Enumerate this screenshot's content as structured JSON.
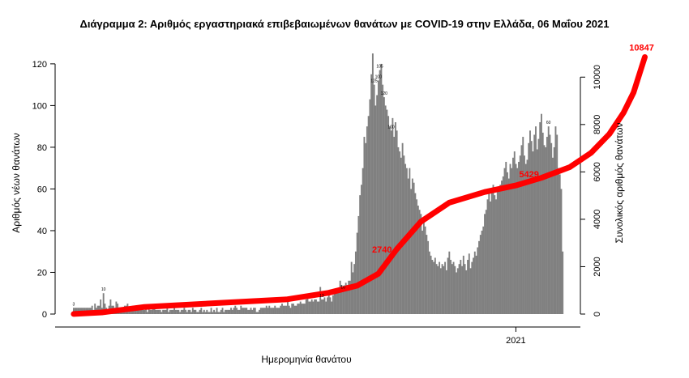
{
  "chart_data": {
    "type": "bar",
    "title": "Διάγραμμα 2: Αριθμός εργαστηριακά επιβεβαιωμένων θανάτων με COVID-19 στην Ελλάδα, 06 Μαΐου 2021",
    "xlabel": "Ημερομηνία θανάτου",
    "ylabel": "Αριθμός νέων θανάτων",
    "y2label": "Συνολικός αριθμός θανάτων",
    "ylim": [
      0,
      125
    ],
    "y2lim": [
      0,
      11000
    ],
    "yticks": [
      0,
      20,
      40,
      60,
      80,
      100,
      120
    ],
    "y2ticks": [
      0,
      2000,
      4000,
      6000,
      8000,
      10000
    ],
    "xtick_labels": [
      {
        "day": 312,
        "label": "2021"
      }
    ],
    "grid": false,
    "colors": {
      "bars": "#808080",
      "cumulative_line": "#ff0000",
      "annotation": "#ff0000"
    },
    "series": [
      {
        "kind": "bar",
        "values": [
          3,
          3,
          3,
          3,
          3,
          3,
          3,
          3,
          3,
          3,
          3,
          3,
          3,
          4,
          2,
          5,
          3,
          4,
          4,
          7,
          3,
          10,
          5,
          3,
          2,
          4,
          7,
          4,
          4,
          3,
          6,
          5,
          3,
          3,
          2,
          2,
          4,
          4,
          5,
          3,
          2,
          3,
          4,
          2,
          3,
          3,
          3,
          3,
          2,
          2,
          2,
          3,
          1,
          3,
          2,
          2,
          3,
          3,
          2,
          2,
          2,
          2,
          1,
          2,
          2,
          2,
          3,
          1,
          2,
          2,
          2,
          3,
          2,
          2,
          2,
          1,
          2,
          2,
          3,
          2,
          1,
          2,
          2,
          1,
          3,
          2,
          2,
          1,
          1,
          2,
          3,
          1,
          2,
          1,
          2,
          1,
          1,
          3,
          1,
          2,
          1,
          3,
          1,
          1,
          2,
          3,
          1,
          2,
          2,
          2,
          2,
          3,
          2,
          3,
          4,
          3,
          2,
          2,
          4,
          3,
          3,
          3,
          3,
          2,
          2,
          3,
          2,
          3,
          3,
          1,
          1,
          2,
          3,
          3,
          3,
          3,
          4,
          3,
          4,
          3,
          3,
          3,
          4,
          3,
          3,
          3,
          4,
          5,
          4,
          4,
          4,
          8,
          4,
          3,
          5,
          5,
          4,
          4,
          5,
          5,
          6,
          5,
          5,
          5,
          7,
          8,
          6,
          6,
          7,
          6,
          7,
          7,
          6,
          6,
          13,
          7,
          7,
          8,
          6,
          8,
          10,
          8,
          6,
          9,
          12,
          10,
          11,
          11,
          16,
          14,
          11,
          13,
          15,
          14,
          16,
          16,
          25,
          20,
          24,
          30,
          39,
          47,
          57,
          62,
          70,
          85,
          82,
          90,
          95,
          103,
          115,
          125,
          110,
          100,
          105,
          112,
          117,
          120,
          110,
          104,
          100,
          98,
          95,
          90,
          88,
          94,
          85,
          92,
          88,
          80,
          78,
          75,
          82,
          76,
          72,
          70,
          65,
          70,
          60,
          65,
          63,
          58,
          55,
          52,
          50,
          48,
          40,
          45,
          42,
          38,
          35,
          30,
          28,
          26,
          25,
          27,
          24,
          23,
          25,
          22,
          24,
          23,
          25,
          21,
          27,
          30,
          26,
          24,
          25,
          23,
          20,
          22,
          24,
          26,
          23,
          28,
          24,
          21,
          26,
          29,
          22,
          25,
          27,
          30,
          28,
          32,
          35,
          38,
          40,
          42,
          48,
          50,
          55,
          58,
          54,
          60,
          62,
          57,
          55,
          59,
          60,
          62,
          64,
          66,
          70,
          73,
          68,
          65,
          72,
          70,
          75,
          78,
          72,
          70,
          73,
          76,
          81,
          85,
          76,
          72,
          74,
          82,
          88,
          83,
          78,
          86,
          90,
          79,
          84,
          92,
          96,
          87,
          81,
          80,
          85,
          90,
          86,
          82,
          75,
          80,
          90,
          86,
          70,
          67,
          60,
          30
        ],
        "point_labels": [
          {
            "day": 0,
            "text": "3"
          },
          {
            "day": 21,
            "text": "10"
          },
          {
            "day": 175,
            "text": "13"
          },
          {
            "day": 190,
            "text": "16"
          },
          {
            "day": 212,
            "text": "125"
          },
          {
            "day": 215,
            "text": "100"
          },
          {
            "day": 216,
            "text": "105"
          },
          {
            "day": 219,
            "text": "120"
          },
          {
            "day": 224,
            "text": "100"
          },
          {
            "day": 335,
            "text": "60"
          },
          {
            "day": 350,
            "text": "70"
          },
          {
            "day": 370,
            "text": "96"
          },
          {
            "day": 383,
            "text": "90"
          },
          {
            "day": 389,
            "text": "90"
          }
        ]
      },
      {
        "kind": "line",
        "axis": "right",
        "values": [
          [
            0,
            3
          ],
          [
            20,
            70
          ],
          [
            50,
            300
          ],
          [
            100,
            460
          ],
          [
            150,
            620
          ],
          [
            180,
            900
          ],
          [
            200,
            1200
          ],
          [
            215,
            1700
          ],
          [
            228,
            2740
          ],
          [
            245,
            3900
          ],
          [
            265,
            4700
          ],
          [
            290,
            5150
          ],
          [
            312,
            5429
          ],
          [
            330,
            5750
          ],
          [
            350,
            6200
          ],
          [
            365,
            6800
          ],
          [
            378,
            7600
          ],
          [
            388,
            8500
          ],
          [
            395,
            9350
          ],
          [
            403,
            10847
          ]
        ],
        "annotations": [
          {
            "day": 228,
            "value": 2740,
            "text": "2740"
          },
          {
            "day": 312,
            "value": 5429,
            "text": "5429"
          },
          {
            "day": 403,
            "value": 10847,
            "text": "10847"
          }
        ]
      }
    ]
  }
}
